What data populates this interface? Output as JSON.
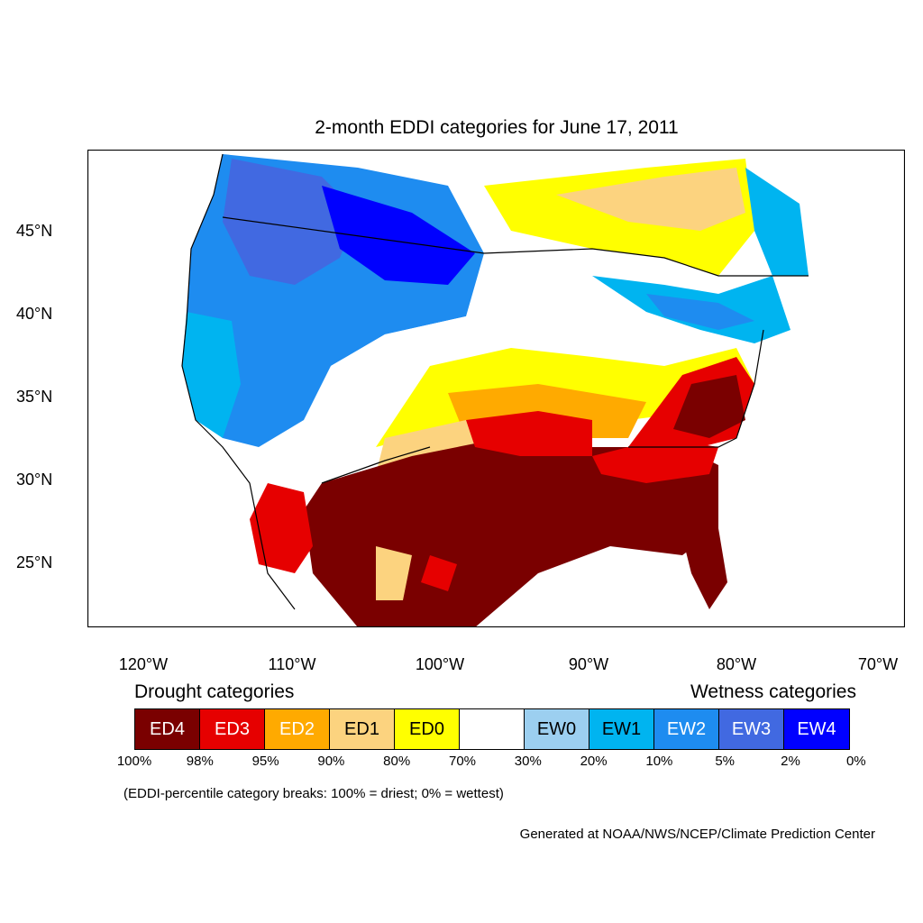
{
  "title": "2-month EDDI categories for June 17, 2011",
  "lat_labels": [
    "45°N",
    "40°N",
    "35°N",
    "30°N",
    "25°N"
  ],
  "lon_labels": [
    "120°W",
    "110°W",
    "100°W",
    "90°W",
    "80°W",
    "70°W"
  ],
  "legend": {
    "drought_label": "Drought categories",
    "wetness_label": "Wetness categories",
    "categories": [
      {
        "label": "ED4",
        "color": "#7a0000",
        "text_color": "#ffffff"
      },
      {
        "label": "ED3",
        "color": "#e60000",
        "text_color": "#ffffff"
      },
      {
        "label": "ED2",
        "color": "#ffaa00",
        "text_color": "#ffffff"
      },
      {
        "label": "ED1",
        "color": "#fcd37f",
        "text_color": "#000000"
      },
      {
        "label": "ED0",
        "color": "#ffff00",
        "text_color": "#000000"
      },
      {
        "label": "",
        "color": "#ffffff",
        "text_color": "#000000"
      },
      {
        "label": "EW0",
        "color": "#9ccff0",
        "text_color": "#000000"
      },
      {
        "label": "EW1",
        "color": "#00b4f0",
        "text_color": "#000000"
      },
      {
        "label": "EW2",
        "color": "#1e8cf0",
        "text_color": "#ffffff"
      },
      {
        "label": "EW3",
        "color": "#4169e1",
        "text_color": "#ffffff"
      },
      {
        "label": "EW4",
        "color": "#0000ff",
        "text_color": "#ffffff"
      }
    ],
    "ticks": [
      "100%",
      "98%",
      "95%",
      "90%",
      "80%",
      "70%",
      "30%",
      "20%",
      "10%",
      "5%",
      "2%",
      "0%"
    ]
  },
  "note": "(EDDI-percentile category breaks: 100% = driest; 0% = wettest)",
  "credit": "Generated at NOAA/NWS/NCEP/Climate Prediction Center"
}
